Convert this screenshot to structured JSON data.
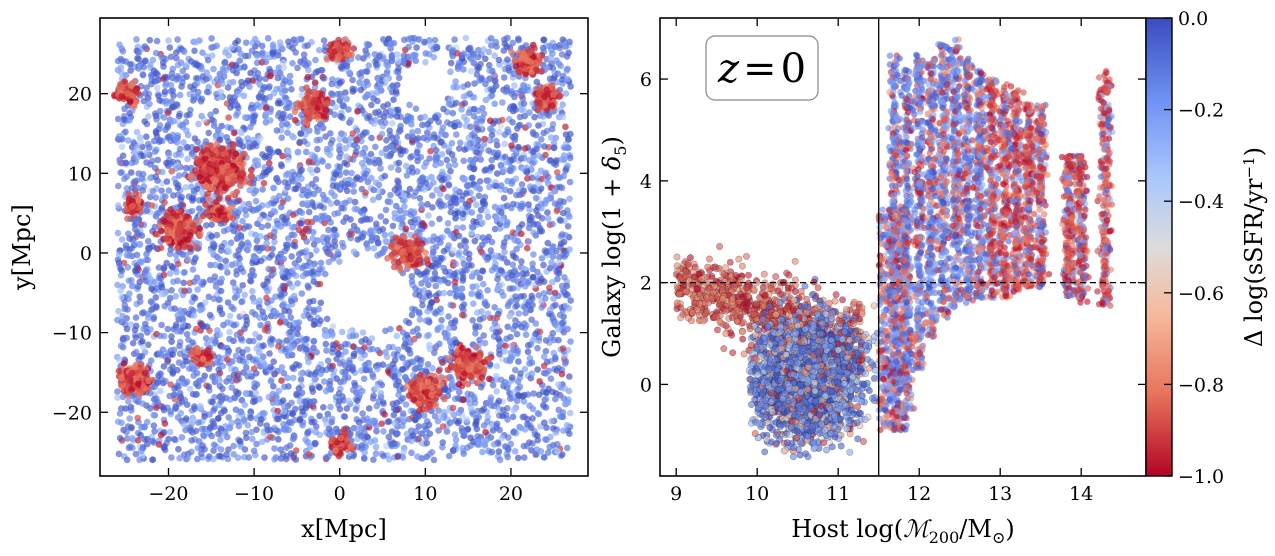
{
  "chart_data": [
    {
      "type": "scatter",
      "panel": "left",
      "xlabel": "x[Mpc]",
      "ylabel": "y[Mpc]",
      "xlim": [
        -28,
        29
      ],
      "ylim": [
        -28,
        29.5
      ],
      "xticks": [
        -20,
        -10,
        0,
        10,
        20
      ],
      "yticks": [
        -20,
        -10,
        0,
        10,
        20
      ],
      "xtick_labels": [
        "−20",
        "−10",
        "0",
        "10",
        "20"
      ],
      "ytick_labels": [
        "−20",
        "−10",
        "0",
        "10",
        "20"
      ],
      "box_extent": [
        -26,
        27
      ],
      "color_by": "Δ log(sSFR/yr⁻¹)",
      "clusters": [
        {
          "x": -14,
          "y": 10.5,
          "r": 2.5
        },
        {
          "x": -19,
          "y": 3,
          "r": 1.8
        },
        {
          "x": -25,
          "y": 20,
          "r": 1.2
        },
        {
          "x": -3,
          "y": 18.5,
          "r": 1.5
        },
        {
          "x": 0,
          "y": 25.5,
          "r": 1.2
        },
        {
          "x": 8,
          "y": 0,
          "r": 1.6
        },
        {
          "x": 15,
          "y": -14,
          "r": 1.8
        },
        {
          "x": 10,
          "y": -17.5,
          "r": 1.6
        },
        {
          "x": -24,
          "y": -16,
          "r": 1.6
        },
        {
          "x": 22,
          "y": 24,
          "r": 1.3
        },
        {
          "x": 24,
          "y": 19.5,
          "r": 1.2
        },
        {
          "x": -14,
          "y": 5,
          "r": 1.0
        },
        {
          "x": -24,
          "y": 6,
          "r": 1.0
        },
        {
          "x": 0,
          "y": -24,
          "r": 1.0
        },
        {
          "x": -16,
          "y": -13,
          "r": 1.0
        }
      ],
      "voids": [
        {
          "x": 3,
          "y": -5,
          "r": 6
        },
        {
          "x": 10,
          "y": 21,
          "r": 3.5
        }
      ]
    },
    {
      "type": "scatter",
      "panel": "right",
      "xlabel": "Host log(ℳ₂₀₀/M⊙)",
      "xlabel_parts": {
        "pre": "Host log(",
        "M": "ℳ",
        "sub": "200",
        "mid": "/M",
        "sun": "⊙",
        "post": ")"
      },
      "ylabel": "Galaxy log(1 + δ₅)",
      "ylabel_parts": {
        "pre": "Galaxy log(1 + ",
        "delta": "δ",
        "sub": "5",
        "post": ")"
      },
      "xlim": [
        8.8,
        14.8
      ],
      "ylim": [
        -1.8,
        7.2
      ],
      "xticks": [
        9,
        10,
        11,
        12,
        13,
        14
      ],
      "yticks": [
        0,
        2,
        4,
        6
      ],
      "xtick_labels": [
        "9",
        "10",
        "11",
        "12",
        "13",
        "14"
      ],
      "ytick_labels": [
        "0",
        "2",
        "4",
        "6"
      ],
      "vline_x": 11.5,
      "hline_y": 2.0,
      "annotation": "z = 0",
      "annotation_parts": {
        "z": "z",
        "eq": "=",
        "num": "0"
      },
      "groups_x": [
        11.7,
        11.85,
        12.0,
        12.15,
        12.3,
        12.45,
        12.6,
        12.75,
        12.9,
        13.05,
        13.2,
        13.35,
        13.5,
        13.85,
        14.0,
        14.3
      ],
      "groups_ymax": [
        6.5,
        6.2,
        6.5,
        6.4,
        6.7,
        6.8,
        6.4,
        6.2,
        6.0,
        5.9,
        5.8,
        5.6,
        5.5,
        4.5,
        4.5,
        6.2
      ],
      "groups_ymin": [
        -0.9,
        -0.5,
        0.3,
        0.9,
        1.3,
        1.5,
        1.6,
        1.7,
        1.7,
        1.7,
        1.8,
        1.9,
        1.9,
        1.7,
        1.6,
        1.5
      ]
    }
  ],
  "colorbar": {
    "label": "Δ log(sSFR/yr⁻¹)",
    "label_parts": {
      "pre": "Δ log(sSFR/yr",
      "sup": "−1",
      "post": ")"
    },
    "range": [
      -1.0,
      0.0
    ],
    "ticks": [
      0.0,
      -0.2,
      -0.4,
      -0.6,
      -0.8,
      -1.0
    ],
    "tick_labels": [
      "0.0",
      "−0.2",
      "−0.4",
      "−0.6",
      "−0.8",
      "−1.0"
    ],
    "colormap": "coolwarm_r",
    "colors": [
      "#3b4cc0",
      "#6f92f3",
      "#aac7fd",
      "#dddcdc",
      "#f7b89c",
      "#e7745b",
      "#b40426"
    ]
  }
}
